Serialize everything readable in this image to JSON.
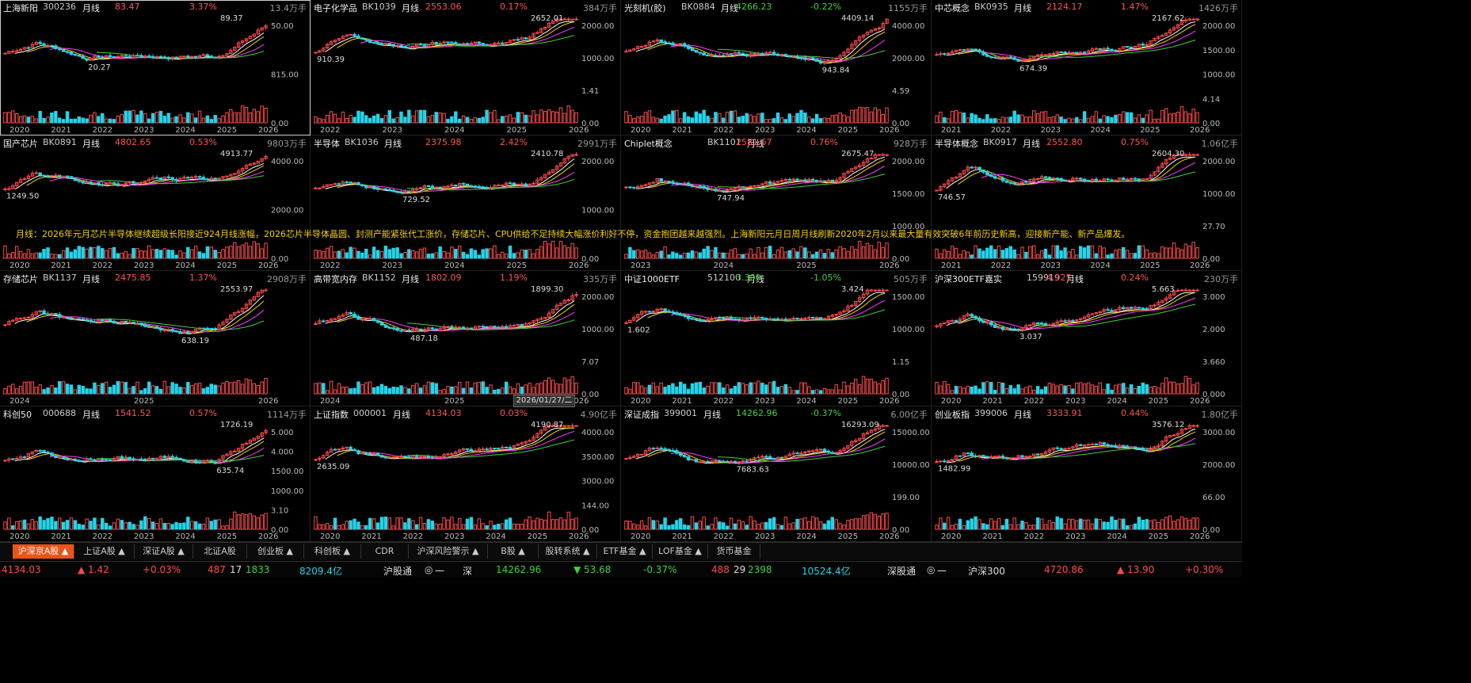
{
  "palette": {
    "up": "#ff4a4a",
    "down": "#27d3e8",
    "ma5": "#ffffff",
    "ma10": "#f5d000",
    "ma20": "#ff3cff",
    "ma60": "#3ed23e",
    "accent": "#e8541a"
  },
  "panels": [
    {
      "name": "上海新阳",
      "code": "300236",
      "period": "月线",
      "price": "83.47",
      "pct": "3.37%",
      "volume": "13.4万手",
      "high_label": "89.37",
      "low_label": "20.27",
      "axis_labels": [
        "50.00",
        "815.00",
        "0.00"
      ],
      "years": [
        "2020",
        "2021",
        "2022",
        "2023",
        "2024",
        "2025",
        "2026"
      ]
    },
    {
      "name": "电子化学品",
      "code": "BK1039",
      "period": "月线",
      "price": "2553.06",
      "pct": "0.17%",
      "volume": "384万手",
      "high_label": "2652.01",
      "low_label": "910.39",
      "axis_labels": [
        "2000.00",
        "1000.00",
        "1.41",
        "0.00"
      ],
      "years": [
        "2022",
        "2023",
        "2024",
        "2025",
        "2026"
      ]
    },
    {
      "name": "光刻机(胶)",
      "code": "BK0884",
      "period": "月线",
      "price": "4266.23",
      "pct": "-0.22%",
      "volume": "1155万手",
      "high_label": "4409.14",
      "low_label": "943.84",
      "axis_labels": [
        "4000.00",
        "2000.00",
        "4.59",
        "0.00"
      ],
      "years": [
        "2020",
        "2021",
        "2022",
        "2023",
        "2024",
        "2025",
        "2026"
      ]
    },
    {
      "name": "中芯概念",
      "code": "BK0935",
      "period": "月线",
      "price": "2124.17",
      "pct": "1.47%",
      "volume": "1426万手",
      "high_label": "2167.62",
      "low_label": "674.39",
      "axis_labels": [
        "2000.00",
        "1500.00",
        "1000.00",
        "4.14",
        "0.00"
      ],
      "years": [
        "2021",
        "2022",
        "2023",
        "2024",
        "2025",
        "2026"
      ]
    },
    {
      "name": "国产芯片",
      "code": "BK0891",
      "period": "月线",
      "price": "4802.65",
      "pct": "0.53%",
      "volume": "9803万手",
      "high_label": "4913.77",
      "low_label": "1249.50",
      "axis_labels": [
        "4000.00",
        "2000.00",
        "0.00"
      ],
      "years": [
        "2020",
        "2021",
        "2022",
        "2023",
        "2024",
        "2025",
        "2026"
      ]
    },
    {
      "name": "半导体",
      "code": "BK1036",
      "period": "月线",
      "price": "2375.98",
      "pct": "2.42%",
      "volume": "2991万手",
      "high_label": "2410.78",
      "low_label": "729.52",
      "axis_labels": [
        "2000.00",
        "1000.00",
        "0.00"
      ],
      "years": [
        "2022",
        "2023",
        "2024",
        "2025",
        "2026"
      ]
    },
    {
      "name": "Chiplet概念",
      "code": "BK1101",
      "period": "月线",
      "price": "2581.67",
      "pct": "0.76%",
      "volume": "928万手",
      "high_label": "2675.47",
      "low_label": "747.94",
      "axis_labels": [
        "2000.00",
        "1500.00",
        "1000.00",
        "0.00"
      ],
      "years": [
        "2023",
        "2024",
        "2025",
        "2026"
      ]
    },
    {
      "name": "半导体概念",
      "code": "BK0917",
      "period": "月线",
      "price": "2552.80",
      "pct": "0.75%",
      "volume": "1.06亿手",
      "high_label": "2604.30",
      "low_label": "746.57",
      "axis_labels": [
        "2000.00",
        "1000.00",
        "27.70",
        "0.00"
      ],
      "years": [
        "2021",
        "2022",
        "2023",
        "2024",
        "2025",
        "2026"
      ]
    },
    {
      "name": "存储芯片",
      "code": "BK1137",
      "period": "月线",
      "price": "2475.85",
      "pct": "1.37%",
      "volume": "2908万手",
      "high_label": "2553.97",
      "low_label": "638.19",
      "axis_labels": [],
      "years": [
        "2024",
        "2025",
        "2026"
      ]
    },
    {
      "name": "高带宽内存",
      "code": "BK1152",
      "period": "月线",
      "price": "1802.09",
      "pct": "1.19%",
      "volume": "335万手",
      "high_label": "1899.30",
      "low_label": "487.18",
      "axis_labels": [
        "2000.00",
        "1000.00",
        "7.07",
        "0.00"
      ],
      "years": [
        "2024",
        "2025",
        "2026"
      ]
    },
    {
      "name": "中证1000ETF",
      "code": "512100",
      "period": "月线",
      "price": "3.309",
      "pct": "-1.05%",
      "volume": "505万手",
      "high_label": "3.424",
      "low_label": "1.602",
      "axis_labels": [
        "1500.00",
        "1000.00",
        "1.15",
        "0.00"
      ],
      "years": [
        "2020",
        "2021",
        "2022",
        "2023",
        "2024",
        "2025",
        "2026"
      ]
    },
    {
      "name": "沪深300ETF嘉实",
      "code": "159919",
      "period": "月线",
      "price": "4.925",
      "pct": "0.24%",
      "volume": "230万手",
      "high_label": "5.663",
      "low_label": "3.037",
      "axis_labels": [
        "3.000",
        "2.000",
        "3.660",
        "0.000"
      ],
      "years": [
        "2020",
        "2021",
        "2022",
        "2023",
        "2024",
        "2025",
        "2026"
      ]
    },
    {
      "name": "科创50",
      "code": "000688",
      "period": "月线",
      "price": "1541.52",
      "pct": "0.57%",
      "volume": "1114万手",
      "high_label": "1726.19",
      "low_label": "635.74",
      "axis_labels": [
        "5.000",
        "4.000",
        "1500.00",
        "1000.00",
        "3.10",
        "0.00"
      ],
      "years": [
        "2020",
        "2021",
        "2022",
        "2023",
        "2024",
        "2025",
        "2026"
      ]
    },
    {
      "name": "上证指数",
      "code": "000001",
      "period": "月线",
      "price": "4134.03",
      "pct": "0.03%",
      "volume": "4.90亿手",
      "high_label": "4190.87",
      "low_label": "2635.09",
      "axis_labels": [
        "4000.00",
        "3500.00",
        "3000.00",
        "144.00",
        "0.00"
      ],
      "years": [
        "2020",
        "2021",
        "2022",
        "2023",
        "2024",
        "2025",
        "2026"
      ]
    },
    {
      "name": "深证成指",
      "code": "399001",
      "period": "月线",
      "price": "14262.96",
      "pct": "-0.37%",
      "volume": "6.00亿手",
      "high_label": "16293.09",
      "low_label": "7683.63",
      "axis_labels": [
        "15000.00",
        "10000.00",
        "199.00",
        "0.00"
      ],
      "years": [
        "2020",
        "2021",
        "2022",
        "2023",
        "2024",
        "2025",
        "2026"
      ]
    },
    {
      "name": "创业板指",
      "code": "399006",
      "period": "月线",
      "price": "3333.91",
      "pct": "0.44%",
      "volume": "1.80亿手",
      "high_label": "3576.12",
      "low_label": "1482.99",
      "axis_labels": [
        "3000.00",
        "2000.00",
        "66.00",
        "0.00"
      ],
      "years": [
        "2020",
        "2021",
        "2022",
        "2023",
        "2024",
        "2025",
        "2026"
      ]
    }
  ],
  "news": "月线：2026年元月芯片半导体继续超级长阳接近924月线涨幅，2026芯片半导体晶圆、封测产能紧张代工涨价，存储芯片、CPU供给不足持续大幅涨价利好不停，资金抱团越来越强烈。上海新阳元月日周月线刷新2020年2月以来最大量有效突破6年前历史新高，迎接新产能、新产品爆发。",
  "crosshair_date": "2026/01/27/二",
  "tabs": [
    {
      "label": "沪深京A股 ▲",
      "active": true
    },
    {
      "label": "上证A股 ▲"
    },
    {
      "label": "深证A股 ▲"
    },
    {
      "label": "北证A股"
    },
    {
      "label": "创业板 ▲"
    },
    {
      "label": "科创板 ▲"
    },
    {
      "label": "CDR"
    },
    {
      "label": "沪深风险警示 ▲"
    },
    {
      "label": "B股 ▲"
    },
    {
      "label": "股转系统 ▲"
    },
    {
      "label": "ETF基金 ▲"
    },
    {
      "label": "LOF基金 ▲"
    },
    {
      "label": "货币基金"
    }
  ],
  "status": {
    "sh_index": "4134.03",
    "sh_change": "▲ 1.42",
    "sh_pct": "+0.03%",
    "sh_up": "487",
    "sh_flat": "17",
    "sh_down": "1833",
    "sh_amount": "8209.4亿",
    "hgt": "沪股通",
    "hgt_mark": "一",
    "sz_label": "深",
    "sz_index": "14262.96",
    "sz_change": "▼ 53.68",
    "sz_pct": "-0.37%",
    "sz_up": "488",
    "sz_flat": "29",
    "sz_down": "2398",
    "sz_amount": "10524.4亿",
    "sgt": "深股通",
    "sgt_mark": "一",
    "hs300_label": "沪深300",
    "hs300": "4720.86",
    "hs300_change": "▲ 13.90",
    "hs300_pct": "+0.30%"
  }
}
